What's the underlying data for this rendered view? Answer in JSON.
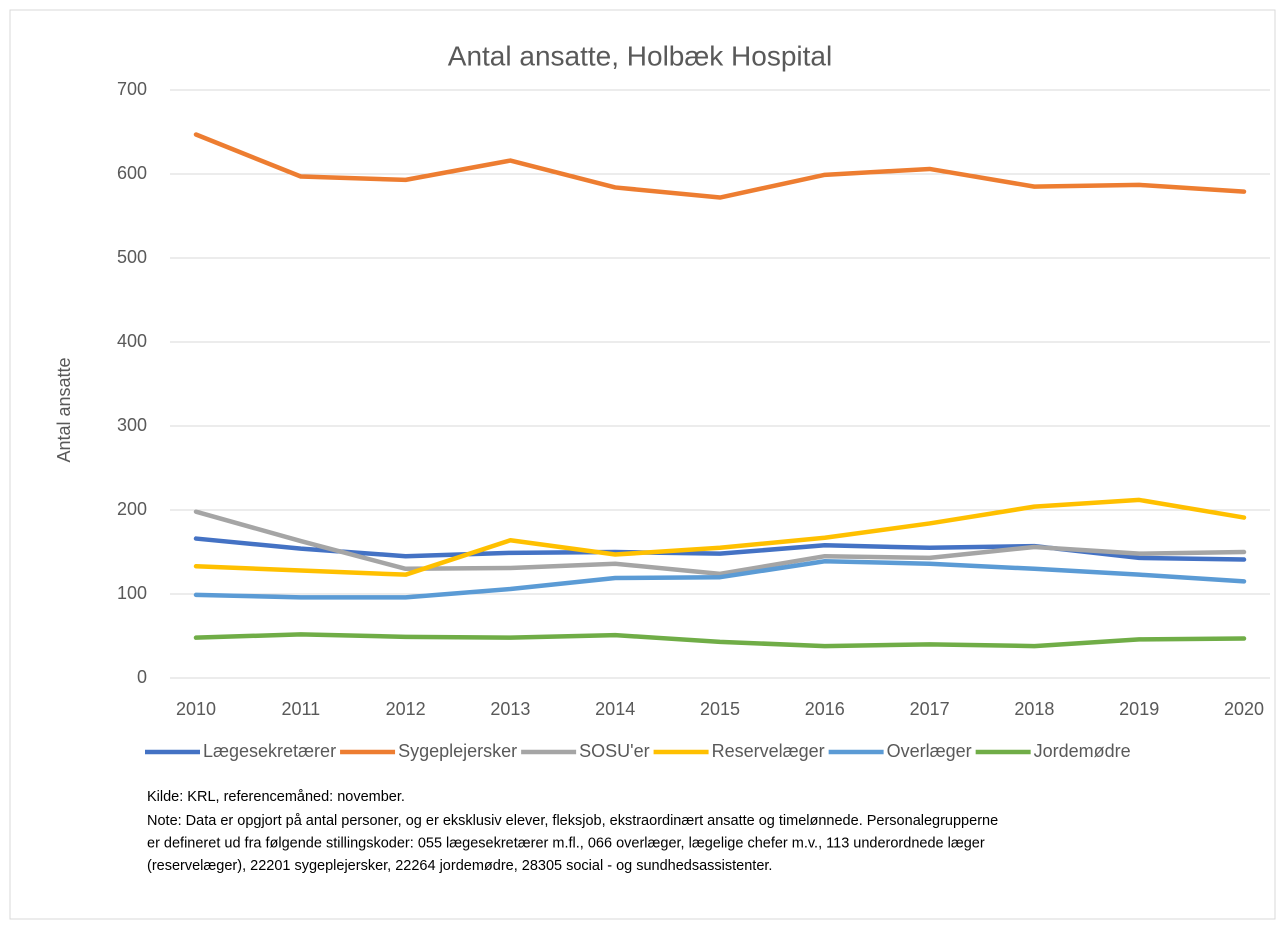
{
  "chart_data": {
    "type": "line",
    "title": "Antal ansatte, Holbæk Hospital",
    "y_label": "Antal ansatte",
    "categories": [
      "2010",
      "2011",
      "2012",
      "2013",
      "2014",
      "2015",
      "2016",
      "2017",
      "2018",
      "2019",
      "2020"
    ],
    "series": [
      {
        "name": "Lægesekretærer",
        "color": "#4472c4",
        "values": [
          166,
          154,
          145,
          149,
          150,
          148,
          158,
          155,
          157,
          143,
          141
        ]
      },
      {
        "name": "Sygeplejersker",
        "color": "#ed7d31",
        "values": [
          647,
          597,
          593,
          616,
          584,
          572,
          599,
          606,
          585,
          587,
          579
        ]
      },
      {
        "name": "SOSU'er",
        "color": "#a5a5a5",
        "values": [
          198,
          163,
          130,
          131,
          136,
          124,
          145,
          143,
          156,
          148,
          150
        ]
      },
      {
        "name": "Reservelæger",
        "color": "#ffc000",
        "values": [
          133,
          128,
          123,
          164,
          147,
          155,
          167,
          184,
          204,
          212,
          191
        ]
      },
      {
        "name": "Overlæger",
        "color": "#5b9bd5",
        "values": [
          99,
          96,
          96,
          106,
          119,
          120,
          139,
          136,
          130,
          123,
          115
        ]
      },
      {
        "name": "Jordemødre",
        "color": "#70ad47",
        "values": [
          48,
          52,
          49,
          48,
          51,
          43,
          38,
          40,
          38,
          46,
          47
        ]
      }
    ],
    "ylim": [
      0,
      700
    ],
    "yticks": [
      0,
      100,
      200,
      300,
      400,
      500,
      600,
      700
    ],
    "grid": true,
    "legend": "bottom",
    "source": "Kilde: KRL, referencemåned: november.",
    "note": [
      "Note: Data er opgjort på antal personer, og er eksklusiv elever, fleksjob, ekstraordinært ansatte og timelønnede. Personalegrupperne",
      "er defineret ud fra følgende stillingskoder: 055 lægesekretærer m.fl., 066 overlæger, lægelige chefer m.v., 113 underordnede læger",
      "(reservelæger), 22201 sygeplejersker, 22264 jordemødre, 28305 social - og sundhedsassistenter."
    ]
  }
}
